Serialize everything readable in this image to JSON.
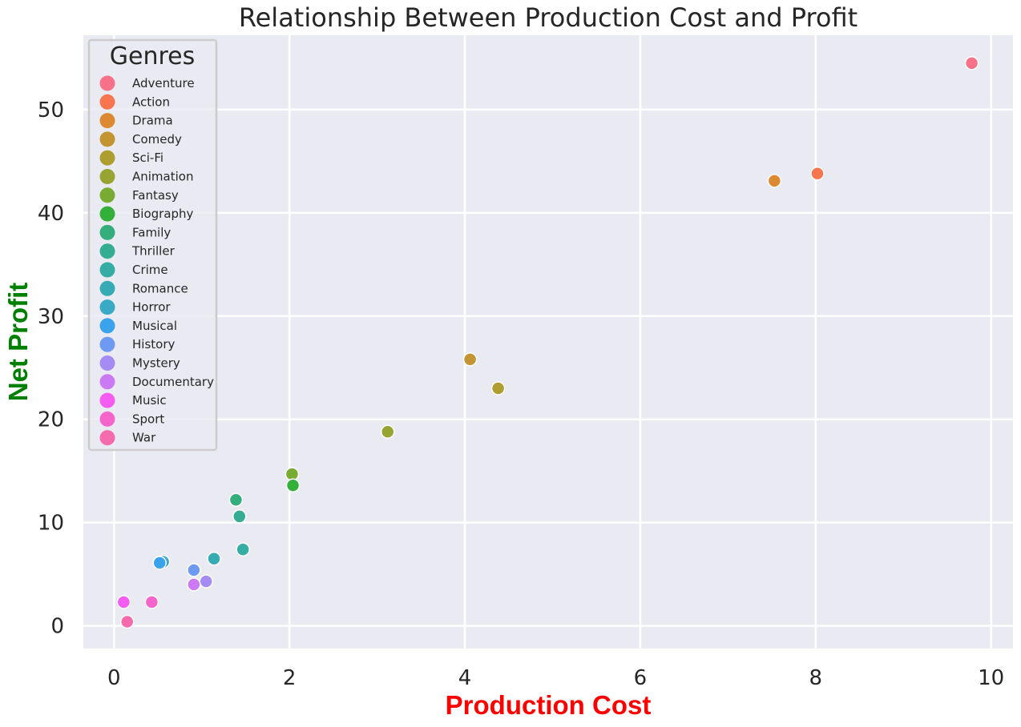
{
  "chart_data": {
    "type": "scatter",
    "title": "Relationship Between Production Cost and Profit",
    "xlabel": "Production Cost",
    "ylabel": "Net Profit",
    "xlabel_color": "#ff0000",
    "ylabel_color": "#008000",
    "xlim": [
      -0.35,
      10.25
    ],
    "ylim": [
      -2.2,
      57.2
    ],
    "xticks": [
      0,
      2,
      4,
      6,
      8,
      10
    ],
    "yticks": [
      0,
      10,
      20,
      30,
      40,
      50
    ],
    "grid": true,
    "background": "#eaeaf2",
    "legend": {
      "title": "Genres",
      "placement": "top-left",
      "entries": [
        {
          "name": "Adventure",
          "color": "#f77189"
        },
        {
          "name": "Action",
          "color": "#f7754f"
        },
        {
          "name": "Drama",
          "color": "#dc8932"
        },
        {
          "name": "Comedy",
          "color": "#c39532"
        },
        {
          "name": "Sci-Fi",
          "color": "#ae9d31"
        },
        {
          "name": "Animation",
          "color": "#97a431"
        },
        {
          "name": "Fantasy",
          "color": "#77ab31"
        },
        {
          "name": "Biography",
          "color": "#33b039"
        },
        {
          "name": "Family",
          "color": "#34ae7c"
        },
        {
          "name": "Thriller",
          "color": "#35ad92"
        },
        {
          "name": "Crime",
          "color": "#36ada4"
        },
        {
          "name": "Romance",
          "color": "#37abb4"
        },
        {
          "name": "Horror",
          "color": "#38aac5"
        },
        {
          "name": "Musical",
          "color": "#3ba3ec"
        },
        {
          "name": "History",
          "color": "#6e9af4"
        },
        {
          "name": "Mystery",
          "color": "#a48cf4"
        },
        {
          "name": "Documentary",
          "color": "#cc7af4"
        },
        {
          "name": "Music",
          "color": "#f45cf2"
        },
        {
          "name": "Sport",
          "color": "#f565cc"
        },
        {
          "name": "War",
          "color": "#f66bad"
        }
      ]
    },
    "series": [
      {
        "name": "Adventure",
        "points": [
          [
            9.78,
            54.5
          ]
        ]
      },
      {
        "name": "Action",
        "points": [
          [
            8.02,
            43.8
          ]
        ]
      },
      {
        "name": "Drama",
        "points": [
          [
            7.53,
            43.1
          ]
        ]
      },
      {
        "name": "Comedy",
        "points": [
          [
            4.06,
            25.8
          ]
        ]
      },
      {
        "name": "Sci-Fi",
        "points": [
          [
            4.38,
            23.0
          ]
        ]
      },
      {
        "name": "Animation",
        "points": [
          [
            3.12,
            18.8
          ]
        ]
      },
      {
        "name": "Fantasy",
        "points": [
          [
            2.03,
            14.7
          ]
        ]
      },
      {
        "name": "Biography",
        "points": [
          [
            2.04,
            13.6
          ]
        ]
      },
      {
        "name": "Family",
        "points": [
          [
            1.39,
            12.2
          ]
        ]
      },
      {
        "name": "Thriller",
        "points": [
          [
            1.43,
            10.6
          ]
        ]
      },
      {
        "name": "Crime",
        "points": [
          [
            1.47,
            7.4
          ]
        ]
      },
      {
        "name": "Romance",
        "points": [
          [
            1.14,
            6.5
          ]
        ]
      },
      {
        "name": "Horror",
        "points": [
          [
            0.56,
            6.2
          ]
        ]
      },
      {
        "name": "Musical",
        "points": [
          [
            0.52,
            6.1
          ]
        ]
      },
      {
        "name": "History",
        "points": [
          [
            0.91,
            5.4
          ]
        ]
      },
      {
        "name": "Mystery",
        "points": [
          [
            1.05,
            4.3
          ]
        ]
      },
      {
        "name": "Documentary",
        "points": [
          [
            0.91,
            4.0
          ]
        ]
      },
      {
        "name": "Music",
        "points": [
          [
            0.11,
            2.3
          ]
        ]
      },
      {
        "name": "Sport",
        "points": [
          [
            0.43,
            2.3
          ]
        ]
      },
      {
        "name": "War",
        "points": [
          [
            0.15,
            0.4
          ]
        ]
      }
    ]
  }
}
